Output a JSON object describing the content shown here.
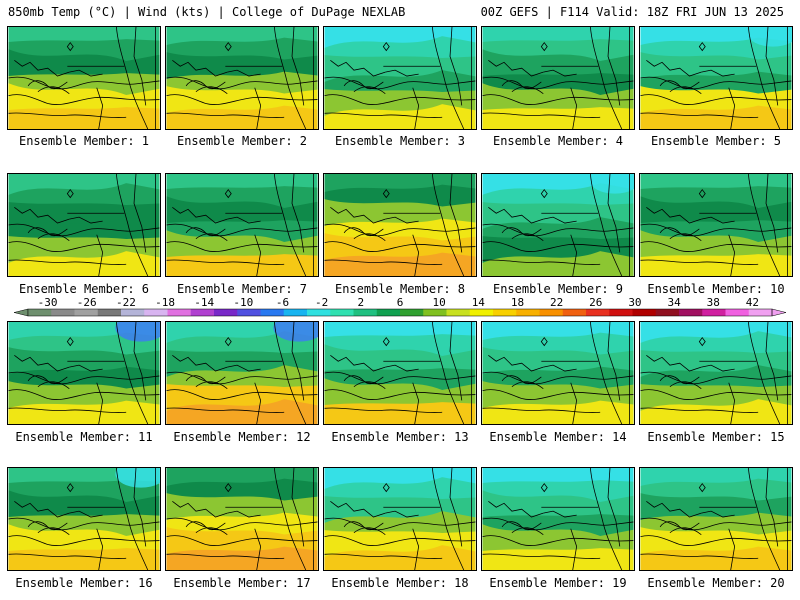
{
  "header": {
    "title_left": "850mb Temp (°C) | Wind (kts) | College of DuPage NEXLAB",
    "title_right": "00Z GEFS | F114 Valid: 18Z FRI JUN 13 2025"
  },
  "members": [
    {
      "label": "Ensemble Member: 1"
    },
    {
      "label": "Ensemble Member: 2"
    },
    {
      "label": "Ensemble Member: 3"
    },
    {
      "label": "Ensemble Member: 4"
    },
    {
      "label": "Ensemble Member: 5"
    },
    {
      "label": "Ensemble Member: 6"
    },
    {
      "label": "Ensemble Member: 7"
    },
    {
      "label": "Ensemble Member: 8"
    },
    {
      "label": "Ensemble Member: 9"
    },
    {
      "label": "Ensemble Member: 10"
    },
    {
      "label": "Ensemble Member: 11"
    },
    {
      "label": "Ensemble Member: 12"
    },
    {
      "label": "Ensemble Member: 13"
    },
    {
      "label": "Ensemble Member: 14"
    },
    {
      "label": "Ensemble Member: 15"
    },
    {
      "label": "Ensemble Member: 16"
    },
    {
      "label": "Ensemble Member: 17"
    },
    {
      "label": "Ensemble Member: 18"
    },
    {
      "label": "Ensemble Member: 19"
    },
    {
      "label": "Ensemble Member: 20"
    }
  ],
  "colorbar": {
    "labels": [
      "-30",
      "-26",
      "-22",
      "-18",
      "-14",
      "-10",
      "-6",
      "-2",
      "2",
      "6",
      "10",
      "14",
      "18",
      "22",
      "26",
      "30",
      "34",
      "38",
      "42"
    ],
    "colors": [
      "#6e8f6e",
      "#8a8a8a",
      "#a0a0a0",
      "#787878",
      "#b4b4d8",
      "#d8b4f0",
      "#e070e0",
      "#b040d0",
      "#7828c8",
      "#5050e0",
      "#2878f0",
      "#18b4f0",
      "#30e0e0",
      "#30e0b0",
      "#20c080",
      "#10a050",
      "#30a030",
      "#80c020",
      "#c8e020",
      "#f0f000",
      "#f8d000",
      "#f8b000",
      "#f89000",
      "#f06010",
      "#e83020",
      "#d01010",
      "#b00000",
      "#901020",
      "#a01060",
      "#d020a0",
      "#f060e0",
      "#f0a0f0"
    ],
    "scale": {
      "min": -32,
      "max": 44,
      "step": 2
    }
  },
  "map_palette": {
    "cyan": "#35e0e6",
    "teal": "#2fd3ad",
    "green_light": "#2ec487",
    "green": "#1ea35f",
    "green_dark": "#0f8a4a",
    "yellow_green": "#8cc632",
    "yellow": "#f0e614",
    "gold": "#f5c815",
    "orange": "#f5a623",
    "blue": "#3d7ef0",
    "line": "#000000"
  },
  "member_bands": [
    [
      "green_light",
      "green",
      "green_dark",
      "yellow_green",
      "yellow",
      "gold"
    ],
    [
      "green_light",
      "green",
      "green_dark",
      "yellow_green",
      "yellow",
      "gold"
    ],
    [
      "cyan",
      "teal",
      "green_light",
      "green",
      "yellow_green",
      "yellow"
    ],
    [
      "teal",
      "green_light",
      "green",
      "green_dark",
      "yellow_green",
      "yellow"
    ],
    [
      "cyan",
      "teal",
      "green_light",
      "green",
      "yellow",
      "gold"
    ],
    [
      "green_light",
      "green",
      "green_dark",
      "green_dark",
      "yellow_green",
      "yellow"
    ],
    [
      "green_light",
      "green",
      "green_dark",
      "green",
      "yellow_green",
      "gold"
    ],
    [
      "green",
      "green_dark",
      "yellow_green",
      "yellow",
      "gold",
      "orange"
    ],
    [
      "cyan",
      "teal",
      "green_light",
      "green",
      "green_dark",
      "yellow_green"
    ],
    [
      "green_light",
      "green",
      "green_dark",
      "green",
      "yellow_green",
      "yellow"
    ],
    [
      "teal",
      "green_light",
      "green",
      "green_dark",
      "yellow_green",
      "yellow"
    ],
    [
      "teal",
      "green_light",
      "green",
      "yellow_green",
      "gold",
      "orange"
    ],
    [
      "cyan",
      "teal",
      "green_light",
      "green",
      "yellow_green",
      "gold"
    ],
    [
      "cyan",
      "teal",
      "green_light",
      "green",
      "yellow_green",
      "yellow"
    ],
    [
      "cyan",
      "teal",
      "green_light",
      "green",
      "yellow_green",
      "yellow"
    ],
    [
      "green_light",
      "green",
      "green_dark",
      "yellow_green",
      "yellow",
      "gold"
    ],
    [
      "green",
      "green_dark",
      "yellow_green",
      "yellow",
      "gold",
      "orange"
    ],
    [
      "cyan",
      "teal",
      "green_light",
      "yellow_green",
      "yellow",
      "gold"
    ],
    [
      "cyan",
      "teal",
      "green_light",
      "green",
      "yellow_green",
      "yellow"
    ],
    [
      "teal",
      "green_light",
      "green",
      "yellow_green",
      "yellow",
      "gold"
    ]
  ]
}
